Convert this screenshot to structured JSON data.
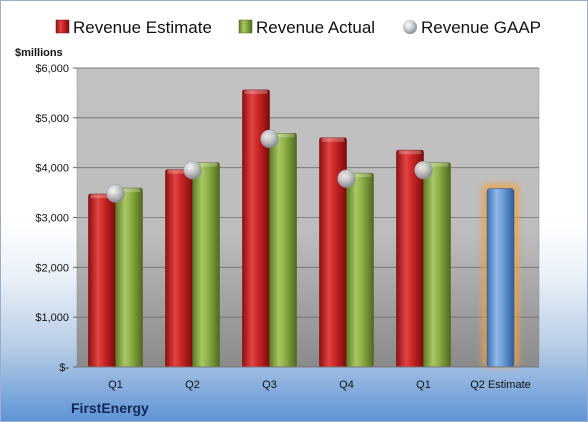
{
  "chart_data": {
    "type": "bar",
    "company": "FirstEnergy",
    "unit_label": "$millions",
    "categories": [
      "Q1",
      "Q2",
      "Q3",
      "Q4",
      "Q1",
      "Q2 Estimate"
    ],
    "yticks": [
      {
        "value": 0,
        "label": "$-"
      },
      {
        "value": 1000,
        "label": "$1,000"
      },
      {
        "value": 2000,
        "label": "$2,000"
      },
      {
        "value": 3000,
        "label": "$3,000"
      },
      {
        "value": 4000,
        "label": "$4,000"
      },
      {
        "value": 5000,
        "label": "$5,000"
      },
      {
        "value": 6000,
        "label": "$6,000"
      }
    ],
    "ylim": [
      0,
      6000
    ],
    "legend_position": "top",
    "series": [
      {
        "name": "Revenue Estimate",
        "kind": "bar",
        "color": "#cc2a2a",
        "values": [
          3470,
          3960,
          5560,
          4600,
          4350,
          null
        ]
      },
      {
        "name": "Revenue Actual",
        "kind": "bar",
        "color": "#8fae4a",
        "values": [
          3590,
          4100,
          4690,
          3890,
          4100,
          null
        ]
      },
      {
        "name": "Revenue GAAP",
        "kind": "marker",
        "color": "#b8bcc4",
        "values": [
          3480,
          3950,
          4580,
          3780,
          3950,
          null
        ]
      }
    ],
    "estimate_bar": {
      "category_index": 5,
      "value": 3580,
      "color": "#6fa0d8",
      "glow": "#f2a040"
    }
  }
}
